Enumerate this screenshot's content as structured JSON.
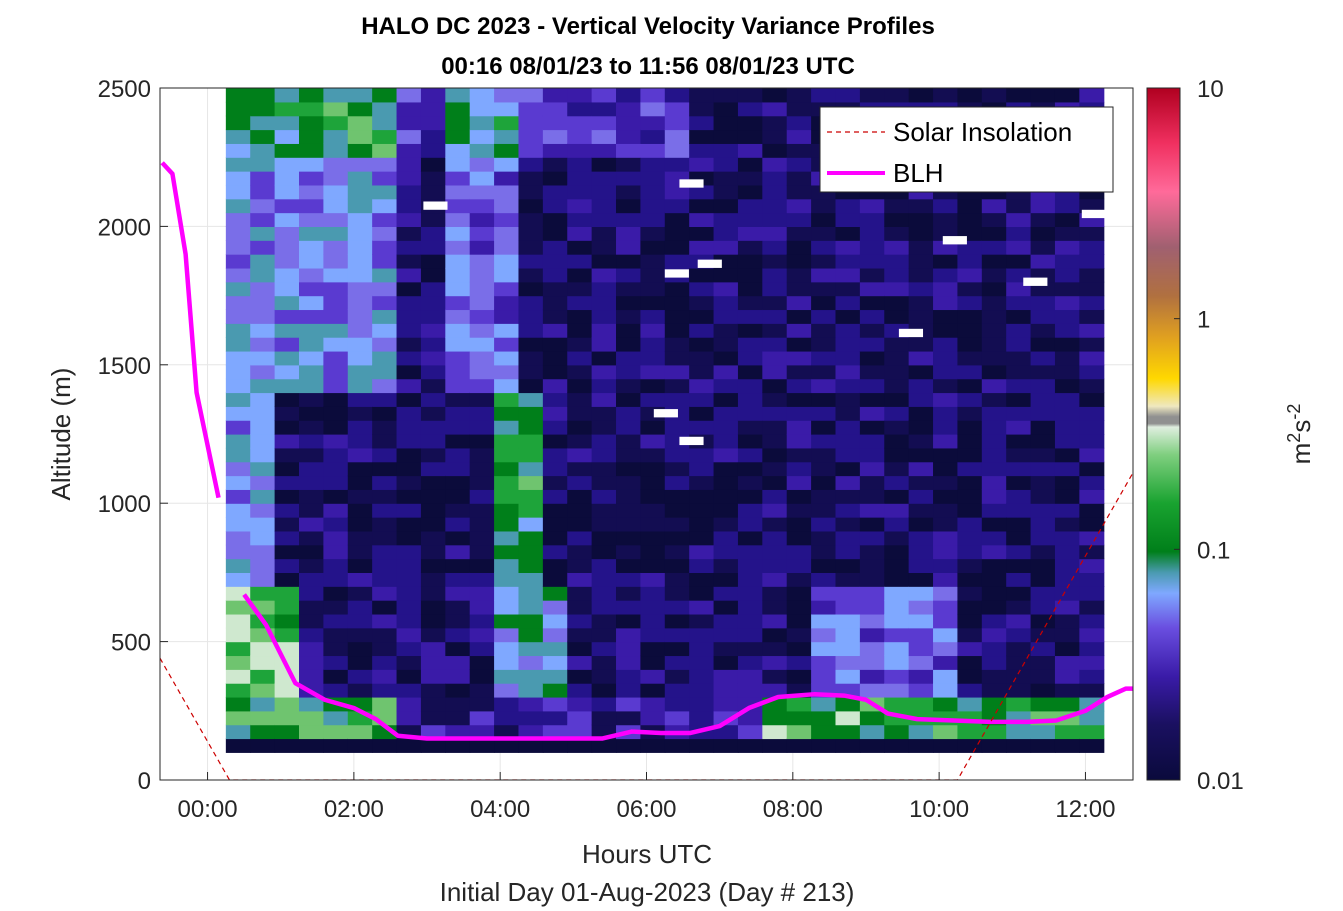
{
  "chart_data": {
    "type": "heatmap",
    "title": "HALO DC 2023 - Vertical Velocity Variance Profiles",
    "subtitle": "00:16 08/01/23 to 11:56 08/01/23  UTC",
    "xlabel": "Hours UTC",
    "xlabel2": "Initial Day 01-Aug-2023 (Day # 213)",
    "ylabel": "Altitude (m)",
    "xlim": [
      -0.65,
      12.65
    ],
    "ylim": [
      0,
      2500
    ],
    "x_tick_labels": [
      "00:00",
      "02:00",
      "04:00",
      "06:00",
      "08:00",
      "10:00",
      "12:00"
    ],
    "y_tick_labels": [
      "0",
      "500",
      "1000",
      "1500",
      "2000",
      "2500"
    ],
    "grid": true,
    "colorbar": {
      "scale": "log",
      "range": [
        0.01,
        10
      ],
      "label_base": "m",
      "label_exp1": "2",
      "label_mid": "s",
      "label_exp2": "-2",
      "tick_labels": [
        "0.01",
        "0.1",
        "1",
        "10"
      ]
    },
    "heatmap_extent": {
      "x_start": 0.25,
      "x_end": 11.95,
      "y_start": 100,
      "y_end": 2500,
      "cell_minutes": 20,
      "cell_height_m": 50
    },
    "legend": {
      "placement": "top-right",
      "entries": [
        {
          "name": "Solar Insolation",
          "style": "dashed",
          "color": "#cc0000"
        },
        {
          "name": "BLH",
          "style": "solid",
          "color": "#ff00ff"
        }
      ]
    },
    "series": [
      {
        "name": "BLH",
        "color": "#ff00ff",
        "segments": [
          {
            "x": [
              -0.62,
              -0.48,
              -0.3,
              -0.15,
              0.15
            ],
            "y": [
              2230,
              2190,
              1900,
              1400,
              1020
            ]
          },
          {
            "x": [
              0.5,
              0.8,
              1.2,
              1.6,
              2.0,
              2.3,
              2.6,
              3.0,
              3.5,
              4.0,
              4.5,
              5.0,
              5.4,
              5.8,
              6.2,
              6.6,
              7.0,
              7.4,
              7.8,
              8.3,
              8.7,
              9.0,
              9.3,
              9.7,
              10.2,
              10.7,
              11.2,
              11.6,
              12.0,
              12.3,
              12.55,
              12.65
            ],
            "y": [
              670,
              560,
              350,
              290,
              260,
              220,
              160,
              150,
              150,
              150,
              150,
              150,
              150,
              175,
              170,
              170,
              195,
              260,
              300,
              310,
              305,
              290,
              240,
              220,
              215,
              210,
              210,
              215,
              250,
              300,
              330,
              330
            ]
          }
        ]
      },
      {
        "name": "Solar Insolation",
        "color": "#cc0000",
        "x": [
          -0.65,
          0.3,
          10.25,
          12.65
        ],
        "y": [
          440,
          0,
          0,
          1110
        ]
      }
    ],
    "white_patches": [
      {
        "x": 6.7,
        "y1": 1850,
        "y2": 1880
      },
      {
        "x": 6.25,
        "y1": 1815,
        "y2": 1845
      },
      {
        "x": 10.05,
        "y1": 1935,
        "y2": 1965
      },
      {
        "x": 11.15,
        "y1": 1785,
        "y2": 1815
      },
      {
        "x": 9.45,
        "y1": 1600,
        "y2": 1630
      },
      {
        "x": 6.1,
        "y1": 1310,
        "y2": 1340
      },
      {
        "x": 6.45,
        "y1": 1210,
        "y2": 1240
      },
      {
        "x": 2.95,
        "y1": 2060,
        "y2": 2090
      },
      {
        "x": 6.45,
        "y1": 2140,
        "y2": 2170
      },
      {
        "x": 11.95,
        "y1": 2030,
        "y2": 2060
      }
    ]
  }
}
